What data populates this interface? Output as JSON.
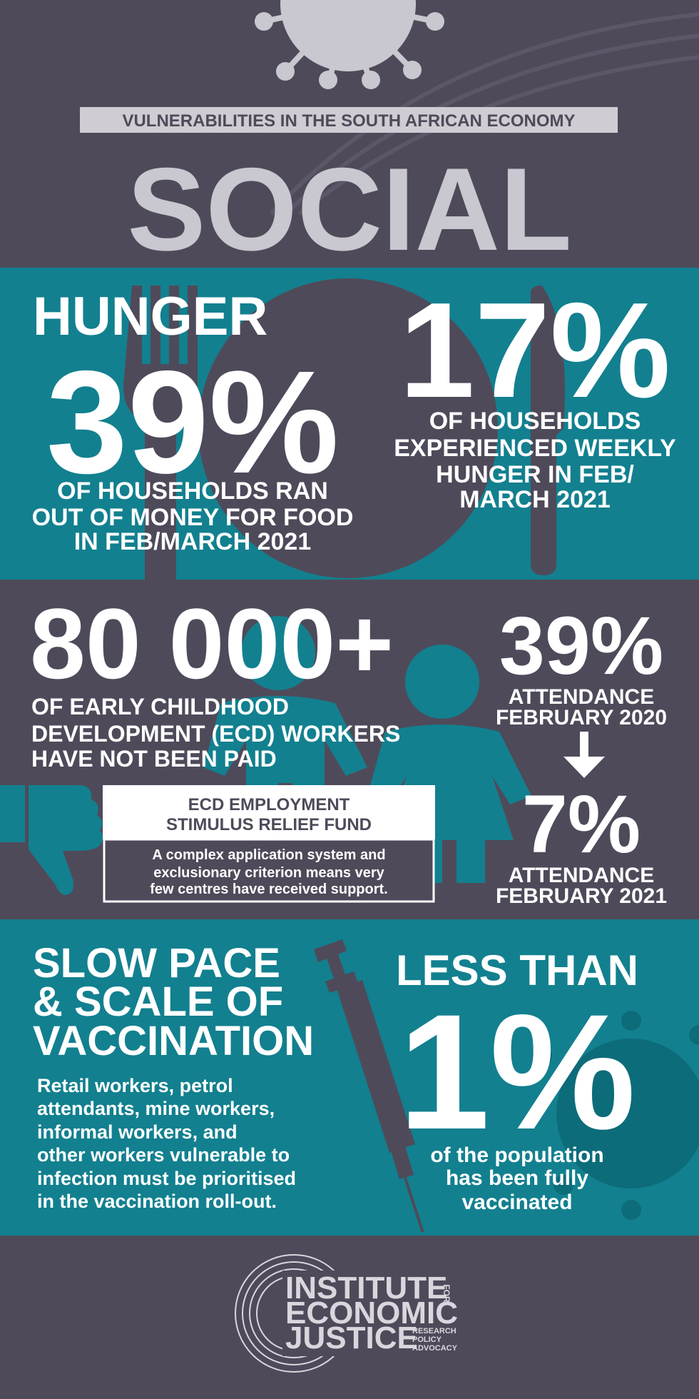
{
  "header": {
    "kicker": "VULNERABILITIES IN THE SOUTH AFRICAN ECONOMY",
    "title": "SOCIAL"
  },
  "hunger": {
    "heading": "HUNGER",
    "left": {
      "figure": "39%",
      "lines": [
        "OF HOUSEHOLDS RAN",
        "OUT OF MONEY FOR FOOD",
        "IN FEB/MARCH 2021"
      ]
    },
    "right": {
      "figure": "17%",
      "lines": [
        "OF HOUSEHOLDS",
        "EXPERIENCED WEEKLY",
        "HUNGER IN FEB/",
        "MARCH 2021"
      ]
    }
  },
  "ecd": {
    "figure": "80 000+",
    "lines": [
      "OF EARLY CHILDHOOD",
      "DEVELOPMENT (ECD) WORKERS",
      "HAVE NOT BEEN PAID"
    ],
    "fund": {
      "title": [
        "ECD EMPLOYMENT",
        "STIMULUS RELIEF FUND"
      ],
      "note": [
        "A complex application system and",
        "exclusionary criterion means very",
        "few centres have received support."
      ]
    },
    "attendance": [
      {
        "figure": "39%",
        "lines": [
          "ATTENDANCE",
          "FEBRUARY 2020"
        ]
      },
      {
        "figure": "7%",
        "lines": [
          "ATTENDANCE",
          "FEBRUARY 2021"
        ]
      }
    ]
  },
  "vaccination": {
    "heading": [
      "SLOW PACE",
      "& SCALE OF",
      "VACCINATION"
    ],
    "body": [
      "Retail workers, petrol",
      "attendants, mine workers,",
      "informal workers, and",
      "other workers vulnerable to",
      "infection must be prioritised",
      "in the vaccination roll-out."
    ],
    "stat": {
      "prefix": "LESS THAN",
      "figure": "1%",
      "lines": [
        "of the population",
        "has been fully",
        "vaccinated"
      ]
    }
  },
  "footer": {
    "logo": {
      "lines": [
        "INSTITUTE",
        "ECONOMIC",
        "JUSTICE"
      ],
      "for": "FOR",
      "tagline": [
        "RESEARCH",
        "POLICY",
        "ADVOCACY"
      ]
    }
  }
}
